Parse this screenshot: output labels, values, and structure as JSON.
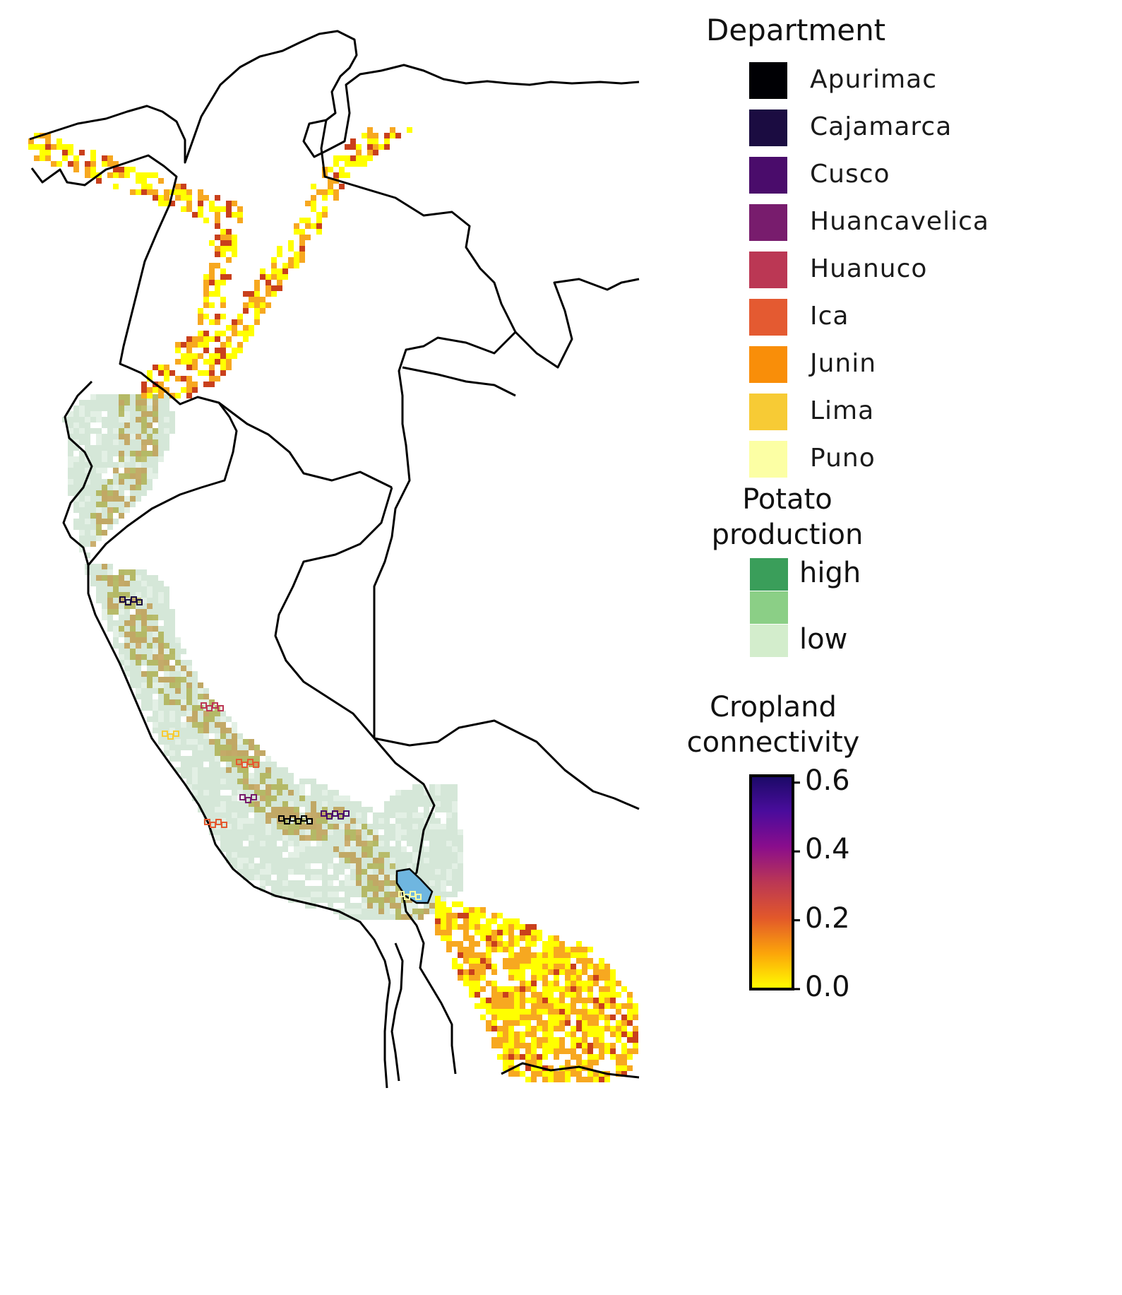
{
  "legend": {
    "department": {
      "title": "Department",
      "items": [
        {
          "label": "Apurimac",
          "color": "#000004"
        },
        {
          "label": "Cajamarca",
          "color": "#1b0c41"
        },
        {
          "label": "Cusco",
          "color": "#4a0c6b"
        },
        {
          "label": "Huancavelica",
          "color": "#781c6d"
        },
        {
          "label": "Huanuco",
          "color": "#bb3754"
        },
        {
          "label": "Ica",
          "color": "#e45a31"
        },
        {
          "label": "Junin",
          "color": "#f98e09"
        },
        {
          "label": "Lima",
          "color": "#f7cb35"
        },
        {
          "label": "Puno",
          "color": "#fcffa4"
        }
      ]
    },
    "potato": {
      "title_line1": "Potato",
      "title_line2": "production",
      "items": [
        {
          "label": "high",
          "color": "#3a9e5a"
        },
        {
          "label": "",
          "color": "#8bcf86"
        },
        {
          "label": "low",
          "color": "#d3edcc"
        }
      ]
    },
    "cropland": {
      "title_line1": "Cropland",
      "title_line2": "connectivity",
      "ticks": [
        "0.6",
        "0.4",
        "0.2",
        "0.0"
      ],
      "tick_values": [
        0.6,
        0.4,
        0.2,
        0.0
      ],
      "range": [
        0.0,
        0.62
      ],
      "gradient": [
        "#ffff00",
        "#fca50a",
        "#e2582a",
        "#bb3754",
        "#8a0d8c",
        "#4a0c9c",
        "#1a0a66"
      ]
    }
  },
  "map": {
    "land_fill": "#ffffff",
    "border_color": "#000000",
    "lake_color": "#6fb6e0",
    "connectivity_low": "#ffff00",
    "connectivity_mid": "#f7a820",
    "connectivity_high": "#c9401c",
    "potato_base": "#d3e6d6"
  }
}
